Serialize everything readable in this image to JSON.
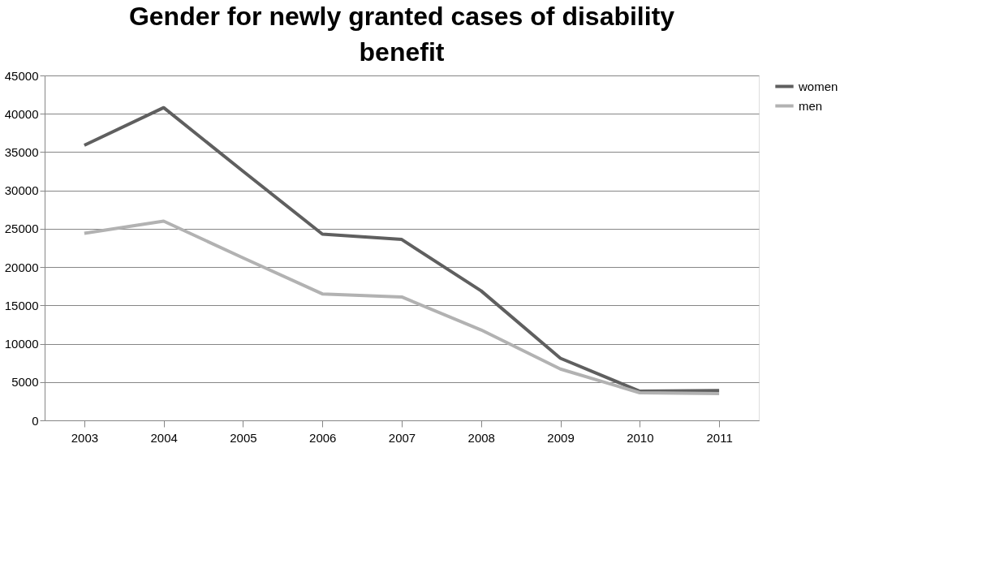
{
  "chart_data": {
    "type": "line",
    "title": "Gender for newly granted cases of disability benefit",
    "categories": [
      "2003",
      "2004",
      "2005",
      "2006",
      "2007",
      "2008",
      "2009",
      "2010",
      "2011"
    ],
    "series": [
      {
        "name": "women",
        "color": "#5f5f5f",
        "values": [
          35900,
          40800,
          32500,
          24300,
          23600,
          16900,
          8100,
          3800,
          3900
        ]
      },
      {
        "name": "men",
        "color": "#b2b2b2",
        "values": [
          24400,
          26000,
          21200,
          16500,
          16100,
          11800,
          6700,
          3600,
          3500
        ]
      }
    ],
    "ylim": [
      0,
      45000
    ],
    "yticks": [
      0,
      5000,
      10000,
      15000,
      20000,
      25000,
      30000,
      35000,
      40000,
      45000
    ],
    "grid": "y",
    "legend": "right",
    "marker": "none",
    "line_style": "solid"
  }
}
